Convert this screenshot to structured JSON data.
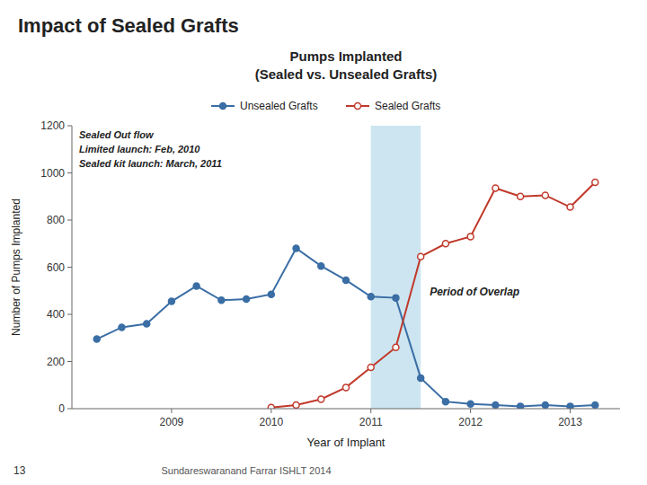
{
  "chart_data": {
    "type": "line",
    "title": "Impact of Sealed Grafts",
    "subtitle": "Pumps Implanted\n(Sealed vs. Unsealed Grafts)",
    "x_label": "Year of Implant",
    "y_label": "Number of Pumps Implanted",
    "series": [
      {
        "name": "Unsealed Grafts",
        "color": "#3a6ea5",
        "marker": "circle",
        "x": [
          2008.25,
          2008.5,
          2008.75,
          2009.0,
          2009.25,
          2009.5,
          2009.75,
          2010.0,
          2010.25,
          2010.5,
          2010.75,
          2011.0,
          2011.25,
          2011.5,
          2011.75,
          2012.0,
          2012.25,
          2012.5,
          2012.75,
          2013.0,
          2013.25
        ],
        "values": [
          295,
          345,
          360,
          455,
          520,
          460,
          465,
          485,
          680,
          605,
          545,
          475,
          470,
          130,
          30,
          20,
          15,
          10,
          15,
          10,
          15
        ]
      },
      {
        "name": "Sealed Grafts",
        "color": "#c0392b",
        "marker": "circle-open",
        "x": [
          2010.0,
          2010.25,
          2010.5,
          2010.75,
          2011.0,
          2011.25,
          2011.5,
          2011.75,
          2012.0,
          2012.25,
          2012.5,
          2012.75,
          2013.0,
          2013.25
        ],
        "values": [
          5,
          15,
          40,
          90,
          175,
          260,
          645,
          700,
          730,
          935,
          900,
          905,
          855,
          960
        ]
      }
    ],
    "spans": [
      {
        "x": [
          2011.0,
          2011.5
        ],
        "label": "Period of Overlap",
        "color": "#cce5f0"
      }
    ],
    "annotations": [
      "Sealed Out flow\nLimited launch: Feb, 2010\nSealed kit launch: March, 2011",
      "Sundareswaranand Farrar ISHLT 2014",
      "13"
    ],
    "xlim": [
      2008.0,
      2013.5
    ],
    "xticks": [
      2009,
      2010,
      2011,
      2012,
      2013
    ],
    "ylim": [
      0,
      1200
    ],
    "yticks": [
      0,
      200,
      400,
      600,
      800,
      1000,
      1200
    ],
    "grid": false,
    "legend": "top"
  }
}
